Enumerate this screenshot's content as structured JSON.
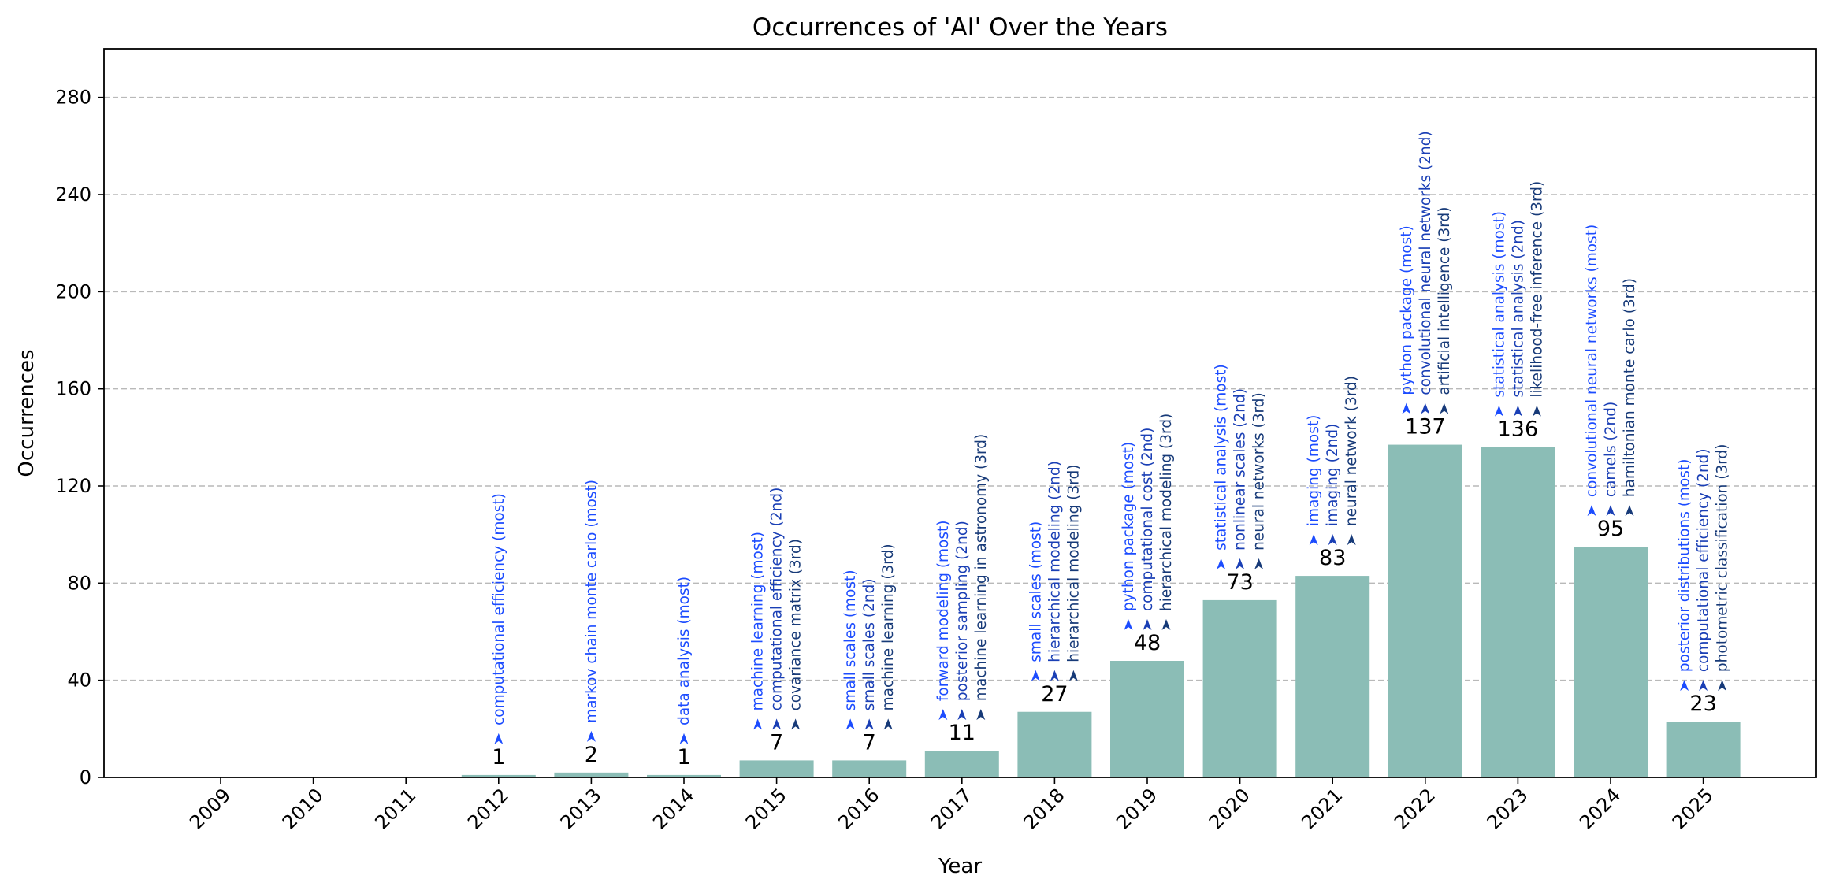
{
  "chart_data": {
    "type": "bar",
    "title": "Occurrences of 'AI' Over the Years",
    "xlabel": "Year",
    "ylabel": "Occurrences",
    "ylim": [
      0,
      300
    ],
    "yticks": [
      0,
      40,
      80,
      120,
      160,
      200,
      240,
      280
    ],
    "grid": "horizontal dashed",
    "bar_color": "#8bbdb6",
    "keyword_colors": [
      "#1c4cff",
      "#1a3fb5",
      "#173a78"
    ],
    "categories": [
      "2009",
      "2010",
      "2011",
      "2012",
      "2013",
      "2014",
      "2015",
      "2016",
      "2017",
      "2018",
      "2019",
      "2020",
      "2021",
      "2022",
      "2023",
      "2024",
      "2025"
    ],
    "values": [
      0,
      0,
      0,
      1,
      2,
      1,
      7,
      7,
      11,
      27,
      48,
      73,
      83,
      137,
      136,
      95,
      23
    ],
    "value_labels": [
      "",
      "",
      "",
      "1",
      "2",
      "1",
      "7",
      "7",
      "11",
      "27",
      "48",
      "73",
      "83",
      "137",
      "136",
      "95",
      "23"
    ],
    "annotations": [
      [],
      [],
      [],
      [
        "computational efficiency (most)"
      ],
      [
        "markov chain monte carlo (most)"
      ],
      [
        "data analysis (most)"
      ],
      [
        "machine learning (most)",
        "computational efficiency (2nd)",
        "covariance matrix (3rd)"
      ],
      [
        "small scales (most)",
        "small scales (2nd)",
        "machine learning (3rd)"
      ],
      [
        "forward modeling (most)",
        "posterior sampling (2nd)",
        "machine learning in astronomy (3rd)"
      ],
      [
        "small scales (most)",
        "hierarchical modeling (2nd)",
        "hierarchical modeling (3rd)"
      ],
      [
        "python package (most)",
        "computational cost (2nd)",
        "hierarchical modeling (3rd)"
      ],
      [
        "statistical analysis (most)",
        "nonlinear scales (2nd)",
        "neural networks (3rd)"
      ],
      [
        "imaging (most)",
        "imaging (2nd)",
        "neural network (3rd)"
      ],
      [
        "python package (most)",
        "convolutional neural networks (2nd)",
        "artificial intelligence (3rd)"
      ],
      [
        "statistical analysis (most)",
        "statistical analysis (2nd)",
        "likelihood-free inference (3rd)"
      ],
      [
        "convolutional neural networks  (most)",
        "camels (2nd)",
        "hamiltonian monte carlo (3rd)"
      ],
      [
        "posterior distributions (most)",
        "computational efficiency (2nd)",
        "photometric classification (3rd)"
      ]
    ]
  }
}
